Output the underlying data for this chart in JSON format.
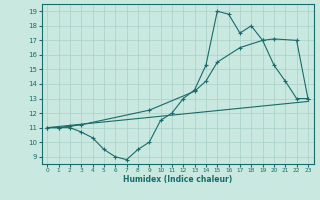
{
  "xlabel": "Humidex (Indice chaleur)",
  "bg_color": "#c8e8e0",
  "grid_color": "#a8d0c8",
  "line_color": "#1a6b6b",
  "xlim": [
    -0.5,
    23.5
  ],
  "ylim": [
    8.5,
    19.5
  ],
  "yticks": [
    9,
    10,
    11,
    12,
    13,
    14,
    15,
    16,
    17,
    18,
    19
  ],
  "xticks": [
    0,
    1,
    2,
    3,
    4,
    5,
    6,
    7,
    8,
    9,
    10,
    11,
    12,
    13,
    14,
    15,
    16,
    17,
    18,
    19,
    20,
    21,
    22,
    23
  ],
  "line1_x": [
    0,
    1,
    2,
    3,
    4,
    5,
    6,
    7,
    8,
    9,
    10,
    11,
    12,
    13,
    14,
    15,
    16,
    17,
    18,
    19,
    20,
    21,
    22,
    23
  ],
  "line1_y": [
    11.0,
    11.0,
    11.0,
    10.7,
    10.3,
    9.5,
    9.0,
    8.8,
    9.5,
    10.0,
    11.5,
    12.0,
    13.0,
    13.6,
    15.3,
    19.0,
    18.8,
    17.5,
    18.0,
    17.0,
    15.3,
    14.2,
    13.0,
    13.0
  ],
  "line2_x": [
    0,
    1,
    2,
    3,
    9,
    13,
    14,
    15,
    17,
    19,
    20,
    22,
    23
  ],
  "line2_y": [
    11.0,
    11.0,
    11.1,
    11.2,
    12.2,
    13.5,
    14.2,
    15.5,
    16.5,
    17.0,
    17.1,
    17.0,
    13.0
  ],
  "line3_x": [
    0,
    23
  ],
  "line3_y": [
    11.0,
    12.8
  ]
}
